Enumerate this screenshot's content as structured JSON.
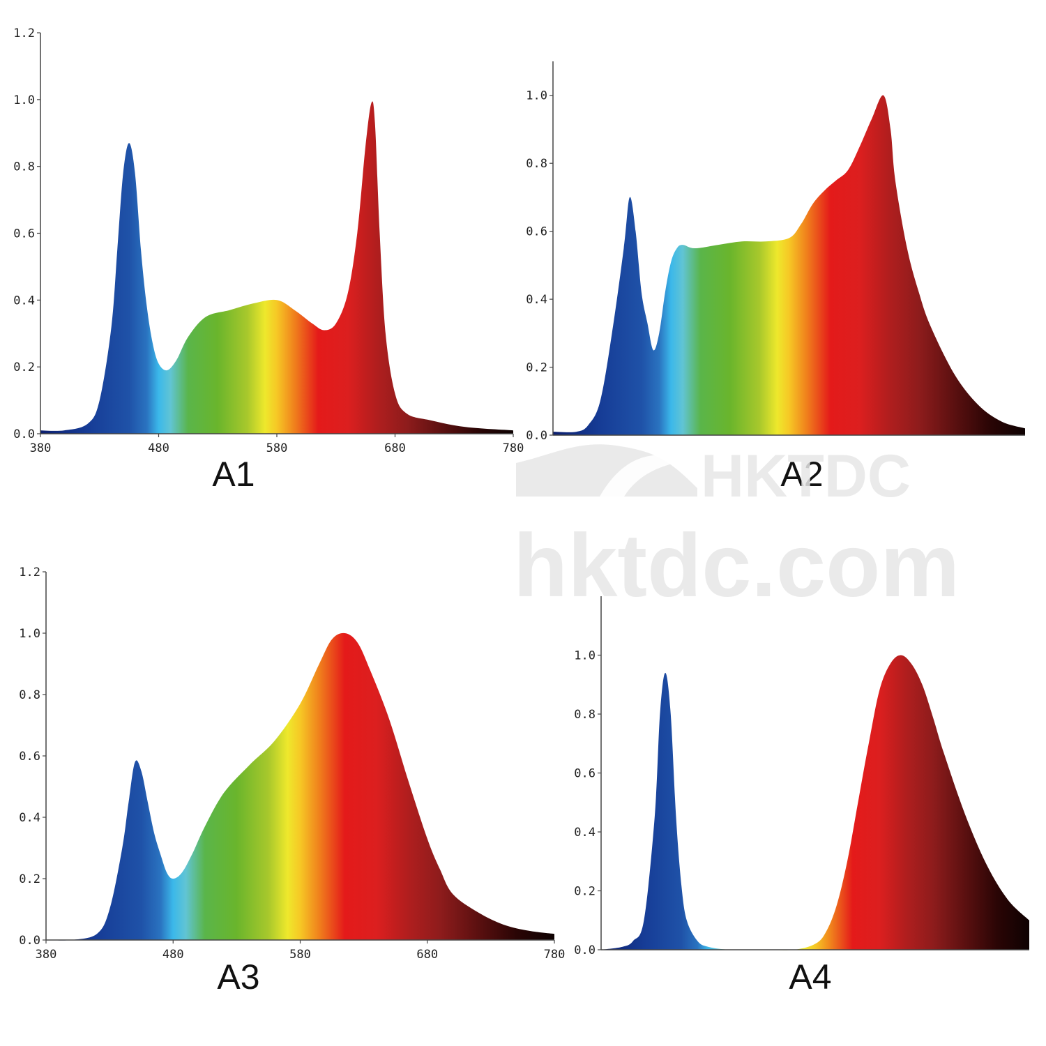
{
  "watermark": {
    "brand": "HKTDC",
    "domain": "hktdc.com"
  },
  "spectrum_colors": [
    [
      380,
      "#0c1f6e"
    ],
    [
      420,
      "#163c96"
    ],
    [
      455,
      "#1f52a8"
    ],
    [
      470,
      "#2a73c0"
    ],
    [
      480,
      "#3bb8ea"
    ],
    [
      490,
      "#61c4d4"
    ],
    [
      505,
      "#5ab54a"
    ],
    [
      530,
      "#6ab52c"
    ],
    [
      555,
      "#a8c82c"
    ],
    [
      570,
      "#eee82c"
    ],
    [
      580,
      "#f6c825"
    ],
    [
      595,
      "#f0801c"
    ],
    [
      615,
      "#e41a1a"
    ],
    [
      640,
      "#dc1f1f"
    ],
    [
      665,
      "#b01e1e"
    ],
    [
      690,
      "#8e1c1c"
    ],
    [
      720,
      "#5b1010"
    ],
    [
      750,
      "#2a0505"
    ],
    [
      780,
      "#0e0202"
    ]
  ],
  "chart_data": [
    {
      "id": "A1",
      "type": "area",
      "label": "A1",
      "xlim": [
        380,
        780
      ],
      "ylim": [
        0,
        1.2
      ],
      "xticks": [
        "380",
        "480",
        "580",
        "680",
        "780"
      ],
      "yticks": [
        "0.0",
        "0.2",
        "0.4",
        "0.6",
        "0.8",
        "1.0",
        "1.2"
      ],
      "x": [
        380,
        400,
        420,
        430,
        440,
        445,
        450,
        455,
        460,
        465,
        470,
        475,
        480,
        487,
        495,
        505,
        520,
        540,
        560,
        580,
        595,
        610,
        620,
        630,
        640,
        648,
        655,
        660,
        663,
        667,
        672,
        680,
        690,
        710,
        740,
        780
      ],
      "y": [
        0.01,
        0.01,
        0.03,
        0.1,
        0.32,
        0.55,
        0.78,
        0.87,
        0.78,
        0.55,
        0.38,
        0.27,
        0.21,
        0.19,
        0.22,
        0.29,
        0.35,
        0.37,
        0.39,
        0.4,
        0.37,
        0.33,
        0.31,
        0.33,
        0.42,
        0.6,
        0.86,
        0.99,
        0.93,
        0.6,
        0.3,
        0.12,
        0.06,
        0.04,
        0.02,
        0.01
      ]
    },
    {
      "id": "A2",
      "type": "area",
      "label": "A2",
      "xlim": [
        380,
        780
      ],
      "ylim": [
        0,
        1.1
      ],
      "xticks": [],
      "yticks": [
        "0.0",
        "0.2",
        "0.4",
        "0.6",
        "0.8",
        "1.0"
      ],
      "x": [
        380,
        400,
        410,
        420,
        430,
        440,
        445,
        450,
        455,
        460,
        465,
        470,
        475,
        480,
        485,
        490,
        500,
        520,
        540,
        560,
        580,
        590,
        600,
        610,
        620,
        630,
        640,
        650,
        660,
        666,
        670,
        680,
        690,
        700,
        720,
        740,
        760,
        780
      ],
      "y": [
        0.01,
        0.01,
        0.03,
        0.1,
        0.3,
        0.55,
        0.7,
        0.6,
        0.42,
        0.33,
        0.25,
        0.3,
        0.42,
        0.51,
        0.55,
        0.56,
        0.55,
        0.56,
        0.57,
        0.57,
        0.58,
        0.62,
        0.68,
        0.72,
        0.75,
        0.78,
        0.85,
        0.93,
        1.0,
        0.9,
        0.75,
        0.55,
        0.42,
        0.32,
        0.18,
        0.09,
        0.04,
        0.02
      ]
    },
    {
      "id": "A3",
      "type": "area",
      "label": "A3",
      "xlim": [
        380,
        780
      ],
      "ylim": [
        0,
        1.2
      ],
      "xticks": [
        "380",
        "480",
        "580",
        "680",
        "780"
      ],
      "yticks": [
        "0.0",
        "0.2",
        "0.4",
        "0.6",
        "0.8",
        "1.0",
        "1.2"
      ],
      "x": [
        380,
        400,
        420,
        430,
        440,
        445,
        450,
        455,
        460,
        465,
        470,
        475,
        480,
        487,
        495,
        505,
        520,
        540,
        560,
        580,
        595,
        605,
        615,
        625,
        635,
        650,
        665,
        680,
        690,
        700,
        720,
        740,
        760,
        780
      ],
      "y": [
        0.0,
        0.0,
        0.02,
        0.1,
        0.3,
        0.45,
        0.58,
        0.55,
        0.45,
        0.35,
        0.28,
        0.22,
        0.2,
        0.22,
        0.28,
        0.37,
        0.48,
        0.57,
        0.65,
        0.77,
        0.9,
        0.98,
        1.0,
        0.97,
        0.88,
        0.72,
        0.52,
        0.33,
        0.23,
        0.15,
        0.09,
        0.05,
        0.03,
        0.02
      ]
    },
    {
      "id": "A4",
      "type": "area",
      "label": "A4",
      "xlim": [
        380,
        780
      ],
      "ylim": [
        0,
        1.2
      ],
      "xticks": [],
      "yticks": [
        "0.0",
        "0.2",
        "0.4",
        "0.6",
        "0.8",
        "1.0"
      ],
      "x": [
        380,
        400,
        410,
        420,
        430,
        435,
        440,
        445,
        450,
        455,
        460,
        470,
        480,
        500,
        530,
        560,
        580,
        590,
        600,
        610,
        620,
        630,
        640,
        650,
        660,
        670,
        680,
        690,
        700,
        720,
        740,
        760,
        780
      ],
      "y": [
        0.0,
        0.01,
        0.03,
        0.1,
        0.45,
        0.8,
        0.94,
        0.8,
        0.45,
        0.22,
        0.1,
        0.03,
        0.01,
        0.0,
        0.0,
        0.0,
        0.02,
        0.06,
        0.15,
        0.3,
        0.5,
        0.7,
        0.88,
        0.97,
        1.0,
        0.97,
        0.9,
        0.79,
        0.67,
        0.46,
        0.29,
        0.17,
        0.1
      ]
    }
  ]
}
